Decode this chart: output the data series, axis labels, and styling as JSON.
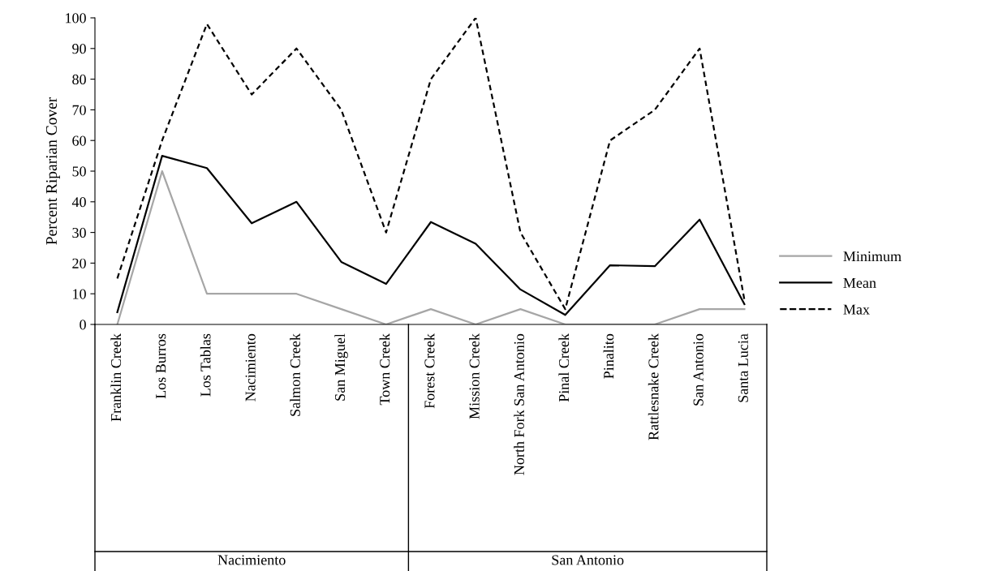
{
  "chart_data": {
    "type": "line",
    "ylabel": "Percent Riparian Cover",
    "categories": [
      "Franklin Creek",
      "Los Burros",
      "Los Tablas",
      "Nacimiento",
      "Salmon Creek",
      "San Miguel",
      "Town Creek",
      "Forest Creek",
      "Mission Creek",
      "North Fork San Antonio",
      "Pinal Creek",
      "Pinalito",
      "Rattlesnake Creek",
      "San Antonio",
      "Santa Lucia"
    ],
    "series": [
      {
        "name": "Minimum",
        "color": "#a6a6a6",
        "line_style": "solid",
        "values": [
          0,
          50,
          10,
          10,
          10,
          5,
          0,
          5,
          0,
          5,
          0,
          0,
          0,
          5,
          5
        ]
      },
      {
        "name": "Mean",
        "color": "#000000",
        "line_style": "solid",
        "values": [
          4,
          55,
          51,
          33,
          40,
          20.4,
          13.2,
          33.4,
          26.3,
          11.4,
          3.1,
          19.3,
          19,
          34.2,
          6.6
        ]
      },
      {
        "name": "Max",
        "color": "#000000",
        "line_style": "dashed",
        "values": [
          15,
          60,
          98,
          75,
          90,
          70,
          30,
          80,
          100,
          30,
          5,
          60,
          70,
          90,
          8
        ]
      }
    ],
    "annotations": [
      "Nacimiento",
      "San Antonio"
    ],
    "ylim": [
      0,
      100
    ],
    "yticks": [
      0,
      10,
      20,
      30,
      40,
      50,
      60,
      70,
      80,
      90,
      100
    ],
    "grid": false,
    "legend": "right",
    "marker": "none"
  }
}
